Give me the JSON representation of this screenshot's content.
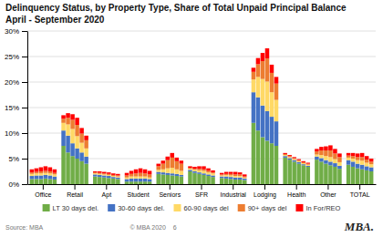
{
  "chart_data": {
    "type": "bar",
    "stacked": true,
    "grid": true,
    "legend": "bottom",
    "title": "Delinquency Status, by Property Type, Share of Total Unpaid Principal Balance",
    "subtitle": "April - September 2020",
    "annotations": [
      "Source: MBA",
      "© MBA 2020    6",
      "MBA."
    ],
    "categories": [
      "Office",
      "Retail",
      "Apt",
      "Student",
      "Seniors",
      "SFR",
      "Industrial",
      "Lodging",
      "Health",
      "Other",
      "TOTAL"
    ],
    "ylim": [
      0,
      0.3
    ],
    "yticks": [
      {
        "value": 0,
        "label": "0%"
      },
      {
        "value": 0.05,
        "label": "5%"
      },
      {
        "value": 0.1,
        "label": "10%"
      },
      {
        "value": 0.15,
        "label": "15%"
      },
      {
        "value": 0.2,
        "label": "20%"
      },
      {
        "value": 0.25,
        "label": "25%"
      },
      {
        "value": 0.3,
        "label": "30%"
      }
    ],
    "series": [
      {
        "name": "LT 30 days del.",
        "color": "#70ad47",
        "values": [
          [
            0.01,
            0.01,
            0.01,
            0.011,
            0.01,
            0.009
          ],
          [
            0.075,
            0.062,
            0.055,
            0.05,
            0.045,
            0.04
          ],
          [
            0.015,
            0.014,
            0.013,
            0.012,
            0.011,
            0.01
          ],
          [
            0.005,
            0.005,
            0.005,
            0.005,
            0.005,
            0.005
          ],
          [
            0.02,
            0.019,
            0.018,
            0.017,
            0.016,
            0.015
          ],
          [
            0.025,
            0.022,
            0.02,
            0.018,
            0.016,
            0.014
          ],
          [
            0.012,
            0.011,
            0.01,
            0.009,
            0.009,
            0.008
          ],
          [
            0.12,
            0.105,
            0.092,
            0.085,
            0.08,
            0.075
          ],
          [
            0.052,
            0.048,
            0.044,
            0.04,
            0.037,
            0.034
          ],
          [
            0.048,
            0.044,
            0.04,
            0.037,
            0.034,
            0.03
          ],
          [
            0.038,
            0.034,
            0.031,
            0.029,
            0.027,
            0.025
          ]
        ]
      },
      {
        "name": "30-60 days del.",
        "color": "#4472c4",
        "values": [
          [
            0.006,
            0.007,
            0.007,
            0.007,
            0.007,
            0.006
          ],
          [
            0.03,
            0.033,
            0.025,
            0.02,
            0.017,
            0.014
          ],
          [
            0.004,
            0.004,
            0.004,
            0.004,
            0.003,
            0.003
          ],
          [
            0.005,
            0.006,
            0.006,
            0.006,
            0.006,
            0.005
          ],
          [
            0.004,
            0.004,
            0.004,
            0.004,
            0.004,
            0.003
          ],
          [
            0.003,
            0.003,
            0.003,
            0.003,
            0.003,
            0.003
          ],
          [
            0.003,
            0.004,
            0.004,
            0.004,
            0.004,
            0.003
          ],
          [
            0.06,
            0.065,
            0.062,
            0.058,
            0.052,
            0.048
          ],
          [
            0.003,
            0.003,
            0.003,
            0.003,
            0.002,
            0.002
          ],
          [
            0.006,
            0.007,
            0.007,
            0.007,
            0.007,
            0.006
          ],
          [
            0.009,
            0.01,
            0.009,
            0.009,
            0.008,
            0.008
          ]
        ]
      },
      {
        "name": "60-90 days del",
        "color": "#ffd966",
        "values": [
          [
            0.004,
            0.004,
            0.004,
            0.004,
            0.004,
            0.004
          ],
          [
            0.015,
            0.022,
            0.028,
            0.024,
            0.019,
            0.016
          ],
          [
            0.002,
            0.002,
            0.002,
            0.002,
            0.002,
            0.002
          ],
          [
            0.003,
            0.004,
            0.004,
            0.004,
            0.004,
            0.003
          ],
          [
            0.004,
            0.006,
            0.009,
            0.011,
            0.009,
            0.008
          ],
          [
            0.002,
            0.003,
            0.004,
            0.005,
            0.004,
            0.004
          ],
          [
            0.002,
            0.003,
            0.003,
            0.003,
            0.003,
            0.002
          ],
          [
            0.025,
            0.04,
            0.052,
            0.058,
            0.048,
            0.042
          ],
          [
            0.002,
            0.002,
            0.002,
            0.002,
            0.002,
            0.002
          ],
          [
            0.004,
            0.006,
            0.008,
            0.009,
            0.008,
            0.007
          ],
          [
            0.005,
            0.006,
            0.007,
            0.008,
            0.007,
            0.006
          ]
        ]
      },
      {
        "name": "90+ days del",
        "color": "#ed7d31",
        "values": [
          [
            0.003,
            0.003,
            0.004,
            0.004,
            0.004,
            0.003
          ],
          [
            0.008,
            0.013,
            0.018,
            0.022,
            0.018,
            0.016
          ],
          [
            0.002,
            0.002,
            0.002,
            0.002,
            0.002,
            0.002
          ],
          [
            0.004,
            0.005,
            0.006,
            0.007,
            0.006,
            0.006
          ],
          [
            0.007,
            0.011,
            0.016,
            0.02,
            0.016,
            0.014
          ],
          [
            0.002,
            0.002,
            0.003,
            0.003,
            0.003,
            0.002
          ],
          [
            0.002,
            0.002,
            0.003,
            0.003,
            0.003,
            0.002
          ],
          [
            0.015,
            0.025,
            0.035,
            0.045,
            0.038,
            0.032
          ],
          [
            0.002,
            0.002,
            0.002,
            0.002,
            0.002,
            0.002
          ],
          [
            0.006,
            0.009,
            0.011,
            0.013,
            0.011,
            0.01
          ],
          [
            0.004,
            0.005,
            0.006,
            0.007,
            0.006,
            0.005
          ]
        ]
      },
      {
        "name": "In For/REO",
        "color": "#ff0000",
        "values": [
          [
            0.006,
            0.007,
            0.008,
            0.009,
            0.008,
            0.007
          ],
          [
            0.007,
            0.009,
            0.011,
            0.014,
            0.011,
            0.009
          ],
          [
            0.002,
            0.003,
            0.003,
            0.003,
            0.003,
            0.003
          ],
          [
            0.005,
            0.006,
            0.008,
            0.009,
            0.008,
            0.007
          ],
          [
            0.005,
            0.006,
            0.007,
            0.009,
            0.007,
            0.006
          ],
          [
            0.003,
            0.004,
            0.005,
            0.006,
            0.005,
            0.004
          ],
          [
            0.003,
            0.004,
            0.004,
            0.005,
            0.004,
            0.004
          ],
          [
            0.008,
            0.012,
            0.016,
            0.02,
            0.016,
            0.013
          ],
          [
            0.002,
            0.002,
            0.002,
            0.002,
            0.002,
            0.002
          ],
          [
            0.005,
            0.007,
            0.008,
            0.01,
            0.009,
            0.007
          ],
          [
            0.005,
            0.006,
            0.007,
            0.008,
            0.007,
            0.006
          ]
        ]
      }
    ]
  }
}
